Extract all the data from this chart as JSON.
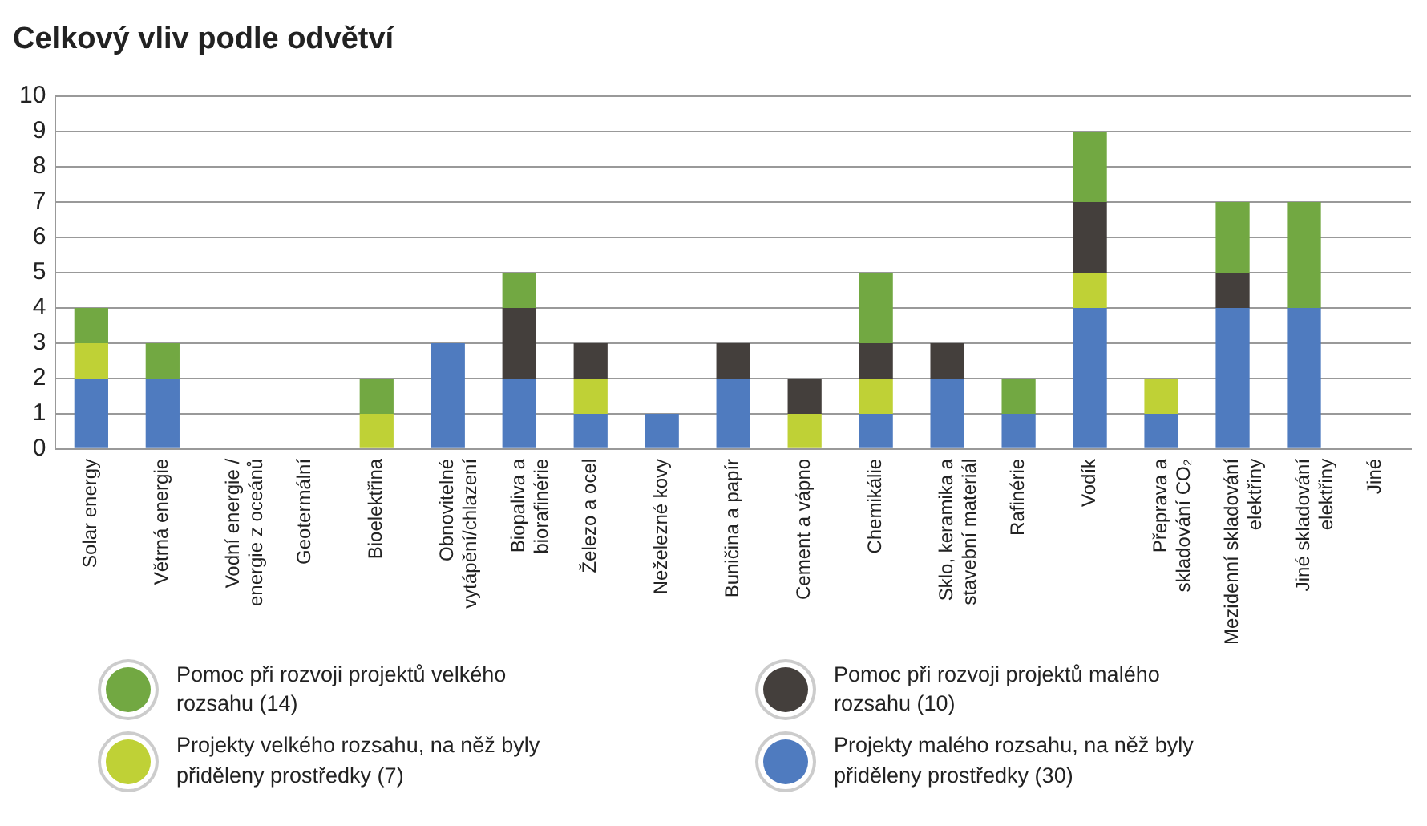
{
  "chart_data": {
    "type": "bar",
    "title": "Celkový vliv podle odvětví",
    "stacked": true,
    "grid": "y",
    "legend": "bottom",
    "categories": [
      "Solar energy",
      "Větrná energie",
      "Vodní energie / energie z oceánů",
      "Geotermální",
      "Bioelektřina",
      "Obnovitelné vytápění/chlazení",
      "Biopaliva a biorafinérie",
      "Železo a ocel",
      "Neželezné kovy",
      "Buničina a papír",
      "Cement a vápno",
      "Chemikálie",
      "Sklo, keramika a stavební materiál",
      "Rafinérie",
      "Vodík",
      "Přeprava a skladování CO₂",
      "Mezidenní skladování elektřiny",
      "Jiné skladování elektřiny",
      "Jiné"
    ],
    "ylim": [
      0,
      10
    ],
    "yticks": [
      0,
      1,
      2,
      3,
      4,
      5,
      6,
      7,
      8,
      9,
      10
    ],
    "series": [
      {
        "name": "Projekty malého rozsahu, na něž byly přiděleny prostředky (30)",
        "color": "#4f7bbf",
        "values": [
          2,
          2,
          0,
          0,
          0,
          3,
          2,
          1,
          1,
          2,
          0,
          1,
          2,
          1,
          4,
          1,
          4,
          4,
          0
        ]
      },
      {
        "name": "Projekty velkého rozsahu, na něž byly přiděleny prostředky (7)",
        "color": "#bfd136",
        "values": [
          1,
          0,
          0,
          0,
          1,
          0,
          0,
          1,
          0,
          0,
          1,
          1,
          0,
          0,
          1,
          1,
          0,
          0,
          0
        ]
      },
      {
        "name": "Pomoc při rozvoji projektů malého rozsahu (10)",
        "color": "#443f3c",
        "values": [
          0,
          0,
          0,
          0,
          0,
          0,
          2,
          1,
          0,
          1,
          1,
          1,
          1,
          0,
          2,
          0,
          1,
          0,
          0
        ]
      },
      {
        "name": "Pomoc při rozvoji projektů velkého rozsahu (14)",
        "color": "#72a842",
        "values": [
          1,
          1,
          0,
          0,
          1,
          0,
          1,
          0,
          0,
          0,
          0,
          2,
          0,
          1,
          2,
          0,
          2,
          3,
          0
        ]
      }
    ]
  }
}
